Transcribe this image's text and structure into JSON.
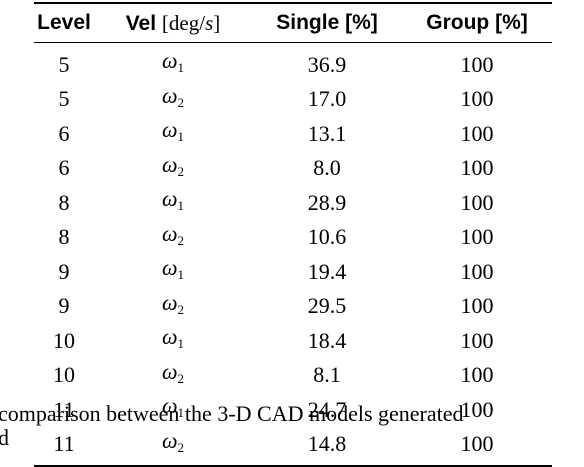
{
  "table": {
    "headers": {
      "level": "Level",
      "vel": "Vel",
      "vel_unit_open": "[deg",
      "vel_unit_slash": "/",
      "vel_unit_var": "s",
      "vel_unit_close": "]",
      "single": "Single [%]",
      "group": "Group [%]"
    },
    "rows": [
      {
        "level": "5",
        "vel_symbol": "ω",
        "vel_sub": "1",
        "single": "36.9",
        "group": "100"
      },
      {
        "level": "5",
        "vel_symbol": "ω",
        "vel_sub": "2",
        "single": "17.0",
        "group": "100"
      },
      {
        "level": "6",
        "vel_symbol": "ω",
        "vel_sub": "1",
        "single": "13.1",
        "group": "100"
      },
      {
        "level": "6",
        "vel_symbol": "ω",
        "vel_sub": "2",
        "single": "8.0",
        "group": "100"
      },
      {
        "level": "8",
        "vel_symbol": "ω",
        "vel_sub": "1",
        "single": "28.9",
        "group": "100"
      },
      {
        "level": "8",
        "vel_symbol": "ω",
        "vel_sub": "2",
        "single": "10.6",
        "group": "100"
      },
      {
        "level": "9",
        "vel_symbol": "ω",
        "vel_sub": "1",
        "single": "19.4",
        "group": "100"
      },
      {
        "level": "9",
        "vel_symbol": "ω",
        "vel_sub": "2",
        "single": "29.5",
        "group": "100"
      },
      {
        "level": "10",
        "vel_symbol": "ω",
        "vel_sub": "1",
        "single": "18.4",
        "group": "100"
      },
      {
        "level": "10",
        "vel_symbol": "ω",
        "vel_sub": "2",
        "single": "8.1",
        "group": "100"
      },
      {
        "level": "11",
        "vel_symbol": "ω",
        "vel_sub": "1",
        "single": "24.7",
        "group": "100"
      },
      {
        "level": "11",
        "vel_symbol": "ω",
        "vel_sub": "2",
        "single": "14.8",
        "group": "100"
      }
    ]
  },
  "caption": {
    "line1": "comparison between the 3-D CAD models generated",
    "line2": "d"
  }
}
